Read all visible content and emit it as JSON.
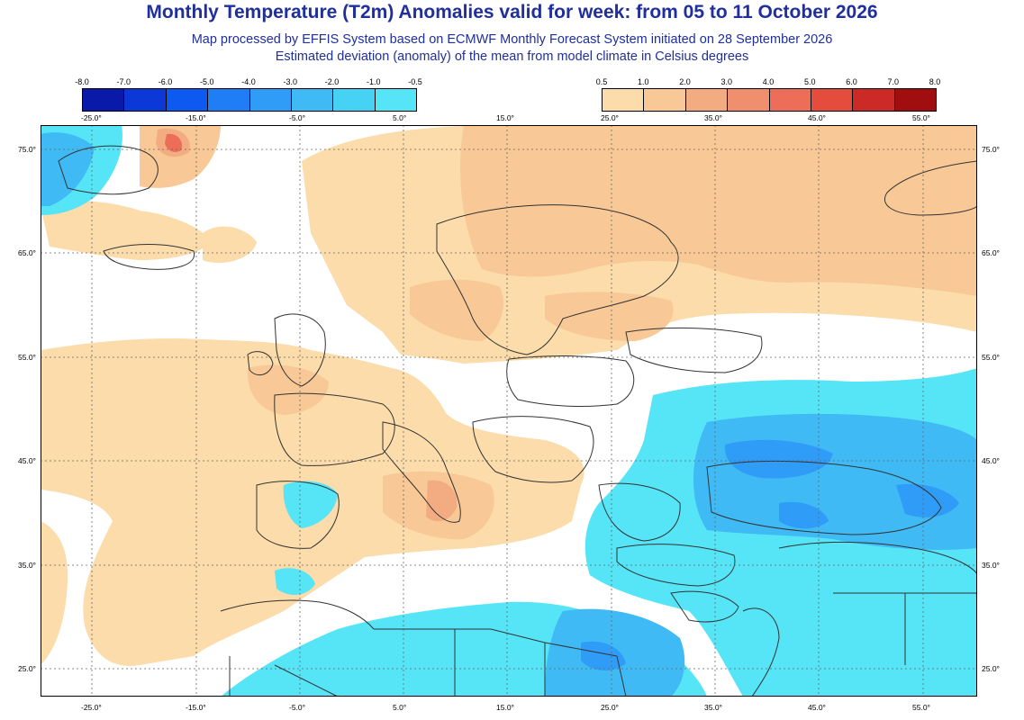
{
  "title": "Monthly Temperature (T2m) Anomalies valid for week: from 05 to 11 October 2026",
  "subtitle1": "Map processed by EFFIS System based on ECMWF Monthly Forecast System initiated on 28 September 2026",
  "subtitle2": "Estimated deviation (anomaly) of the mean from model climate in Celsius degrees",
  "legend_cold": {
    "ticks": [
      "-8.0",
      "-7.0",
      "-6.0",
      "-5.0",
      "-4.0",
      "-3.0",
      "-2.0",
      "-1.0",
      "-0.5"
    ],
    "colors": [
      "#0a1aa8",
      "#0b38d6",
      "#0e5af0",
      "#1f7ef5",
      "#2f9cf8",
      "#3fbaf5",
      "#45d2f5",
      "#56e4f7"
    ]
  },
  "legend_warm": {
    "ticks": [
      "0.5",
      "1.0",
      "2.0",
      "3.0",
      "4.0",
      "5.0",
      "6.0",
      "7.0",
      "8.0"
    ],
    "colors": [
      "#fbdcaa",
      "#f8c896",
      "#f3ac82",
      "#f08f6e",
      "#ec6e58",
      "#e44c3e",
      "#cc2a26",
      "#a00e10"
    ]
  },
  "lon_labels": [
    "-25.0°",
    "-15.0°",
    "-5.0°",
    "5.0°",
    "15.0°",
    "25.0°",
    "35.0°",
    "45.0°",
    "55.0°"
  ],
  "lat_labels": [
    "75.0°",
    "65.0°",
    "55.0°",
    "45.0°",
    "35.0°",
    "25.0°"
  ],
  "map_colors": {
    "ocean_neutral": "#ffffff",
    "warm_light": "#fbdcaa",
    "warm_mid": "#f8c896",
    "warm_strong": "#f3ac82",
    "warm_hot": "#ec6e58",
    "cold_light": "#56e4f7",
    "cold_mid": "#3fbaf5",
    "cold_strong": "#2f9cf8",
    "border_line": "#333333",
    "grid_line": "#666666"
  }
}
